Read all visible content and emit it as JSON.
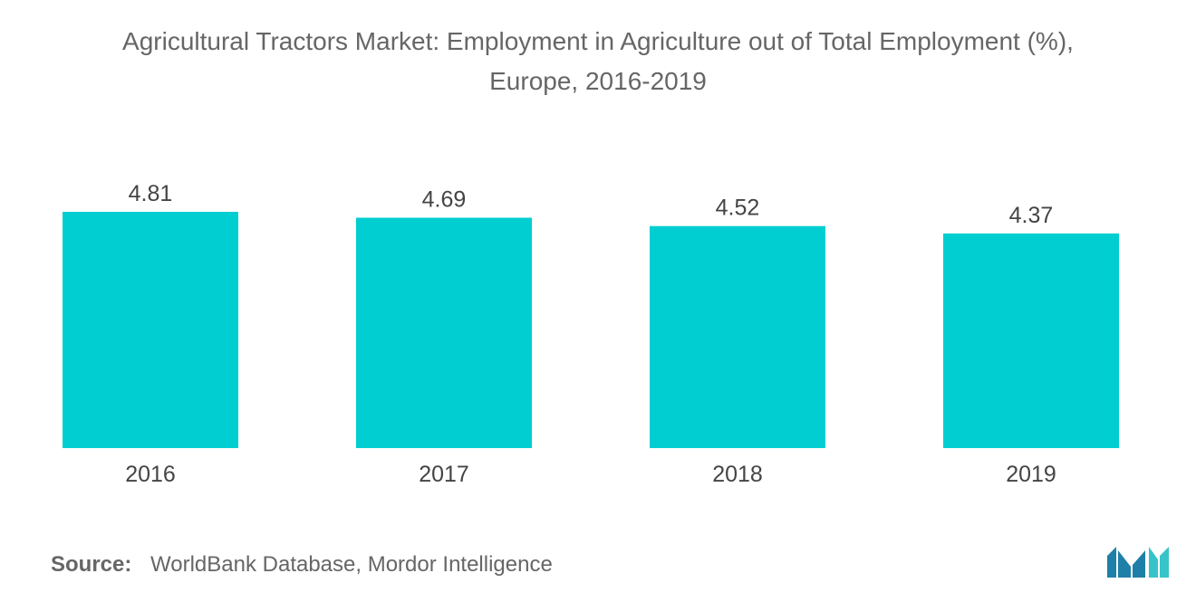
{
  "chart_data": {
    "type": "bar",
    "title": "Agricultural Tractors Market: Employment in Agriculture out of Total Employment (%),",
    "subtitle": "Europe, 2016-2019",
    "categories": [
      "2016",
      "2017",
      "2018",
      "2019"
    ],
    "values": [
      4.81,
      4.69,
      4.52,
      4.37
    ],
    "value_labels": [
      "4.81",
      "4.69",
      "4.52",
      "4.37"
    ],
    "ylim": [
      0,
      4.81
    ],
    "grid": false,
    "bar_color": "#00CED1"
  },
  "source": {
    "label": "Source:",
    "text": "WorldBank Database, Mordor Intelligence"
  },
  "logo": {
    "icon": "mordor-intelligence-logo",
    "colors": [
      "#1E7FA8",
      "#37C4C9"
    ]
  }
}
